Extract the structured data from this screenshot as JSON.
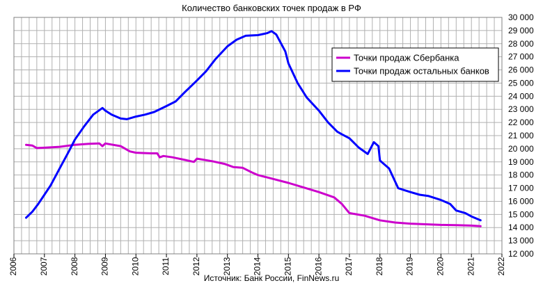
{
  "chart_data": {
    "type": "line",
    "title": "Количество банковских точек продаж в РФ",
    "source": "Источник: Банк России, FinNews.ru",
    "x_ticks": [
      "2006",
      "2007",
      "2008",
      "2009",
      "2010",
      "2011",
      "2012",
      "2013",
      "2014",
      "2015",
      "2016",
      "2017",
      "2018",
      "2019",
      "2020",
      "2021",
      "2022"
    ],
    "xlim": [
      2006,
      2022
    ],
    "y_ticks": [
      "12 000",
      "13 000",
      "14 000",
      "15 000",
      "16 000",
      "17 000",
      "18 000",
      "19 000",
      "20 000",
      "21 000",
      "22 000",
      "23 000",
      "24 000",
      "25 000",
      "26 000",
      "27 000",
      "28 000",
      "29 000",
      "30 000"
    ],
    "ylim": [
      12000,
      30000
    ],
    "grid": true,
    "legend_position": "top-right",
    "colors": {
      "sber": "#cc00cc",
      "others": "#0000ff",
      "grid": "#b0b0b0"
    },
    "series": [
      {
        "name": "Точки продаж Сбербанка",
        "color": "#cc00cc",
        "points": [
          [
            2006.4,
            20300
          ],
          [
            2006.6,
            20250
          ],
          [
            2006.75,
            20050
          ],
          [
            2007.0,
            20080
          ],
          [
            2007.5,
            20150
          ],
          [
            2008.0,
            20300
          ],
          [
            2008.5,
            20380
          ],
          [
            2008.8,
            20400
          ],
          [
            2008.9,
            20200
          ],
          [
            2009.0,
            20400
          ],
          [
            2009.5,
            20200
          ],
          [
            2009.8,
            19800
          ],
          [
            2010.0,
            19700
          ],
          [
            2010.5,
            19650
          ],
          [
            2010.7,
            19650
          ],
          [
            2010.78,
            19350
          ],
          [
            2010.9,
            19450
          ],
          [
            2011.2,
            19350
          ],
          [
            2011.6,
            19150
          ],
          [
            2011.9,
            19000
          ],
          [
            2012.0,
            19250
          ],
          [
            2012.5,
            19050
          ],
          [
            2012.9,
            18850
          ],
          [
            2013.2,
            18600
          ],
          [
            2013.5,
            18550
          ],
          [
            2013.8,
            18200
          ],
          [
            2014.0,
            18000
          ],
          [
            2014.5,
            17700
          ],
          [
            2015.0,
            17400
          ],
          [
            2015.5,
            17050
          ],
          [
            2016.0,
            16700
          ],
          [
            2016.5,
            16300
          ],
          [
            2016.75,
            15800
          ],
          [
            2017.0,
            15100
          ],
          [
            2017.5,
            14900
          ],
          [
            2018.0,
            14550
          ],
          [
            2018.5,
            14380
          ],
          [
            2019.0,
            14300
          ],
          [
            2019.5,
            14250
          ],
          [
            2020.0,
            14200
          ],
          [
            2020.5,
            14180
          ],
          [
            2021.0,
            14150
          ],
          [
            2021.3,
            14100
          ]
        ]
      },
      {
        "name": "Точки продаж остальных банков",
        "color": "#0000ff",
        "points": [
          [
            2006.4,
            14750
          ],
          [
            2006.6,
            15200
          ],
          [
            2006.8,
            15800
          ],
          [
            2007.0,
            16500
          ],
          [
            2007.2,
            17200
          ],
          [
            2007.5,
            18500
          ],
          [
            2007.8,
            19800
          ],
          [
            2008.0,
            20700
          ],
          [
            2008.3,
            21700
          ],
          [
            2008.6,
            22600
          ],
          [
            2008.9,
            23100
          ],
          [
            2009.0,
            22900
          ],
          [
            2009.2,
            22600
          ],
          [
            2009.5,
            22300
          ],
          [
            2009.7,
            22250
          ],
          [
            2010.0,
            22450
          ],
          [
            2010.3,
            22600
          ],
          [
            2010.6,
            22800
          ],
          [
            2011.0,
            23250
          ],
          [
            2011.3,
            23600
          ],
          [
            2011.6,
            24300
          ],
          [
            2012.0,
            25200
          ],
          [
            2012.3,
            25900
          ],
          [
            2012.6,
            26800
          ],
          [
            2013.0,
            27800
          ],
          [
            2013.3,
            28300
          ],
          [
            2013.6,
            28600
          ],
          [
            2014.0,
            28650
          ],
          [
            2014.3,
            28800
          ],
          [
            2014.45,
            28950
          ],
          [
            2014.6,
            28700
          ],
          [
            2014.9,
            27400
          ],
          [
            2015.0,
            26500
          ],
          [
            2015.3,
            25000
          ],
          [
            2015.6,
            23900
          ],
          [
            2016.0,
            22900
          ],
          [
            2016.3,
            22000
          ],
          [
            2016.6,
            21300
          ],
          [
            2016.75,
            21100
          ],
          [
            2017.0,
            20800
          ],
          [
            2017.3,
            20100
          ],
          [
            2017.6,
            19600
          ],
          [
            2017.8,
            20500
          ],
          [
            2017.95,
            20200
          ],
          [
            2018.0,
            19100
          ],
          [
            2018.3,
            18500
          ],
          [
            2018.6,
            17000
          ],
          [
            2018.8,
            16850
          ],
          [
            2019.0,
            16700
          ],
          [
            2019.3,
            16500
          ],
          [
            2019.6,
            16400
          ],
          [
            2020.0,
            16100
          ],
          [
            2020.3,
            15800
          ],
          [
            2020.5,
            15300
          ],
          [
            2020.8,
            15100
          ],
          [
            2021.0,
            14850
          ],
          [
            2021.3,
            14550
          ]
        ]
      }
    ]
  }
}
